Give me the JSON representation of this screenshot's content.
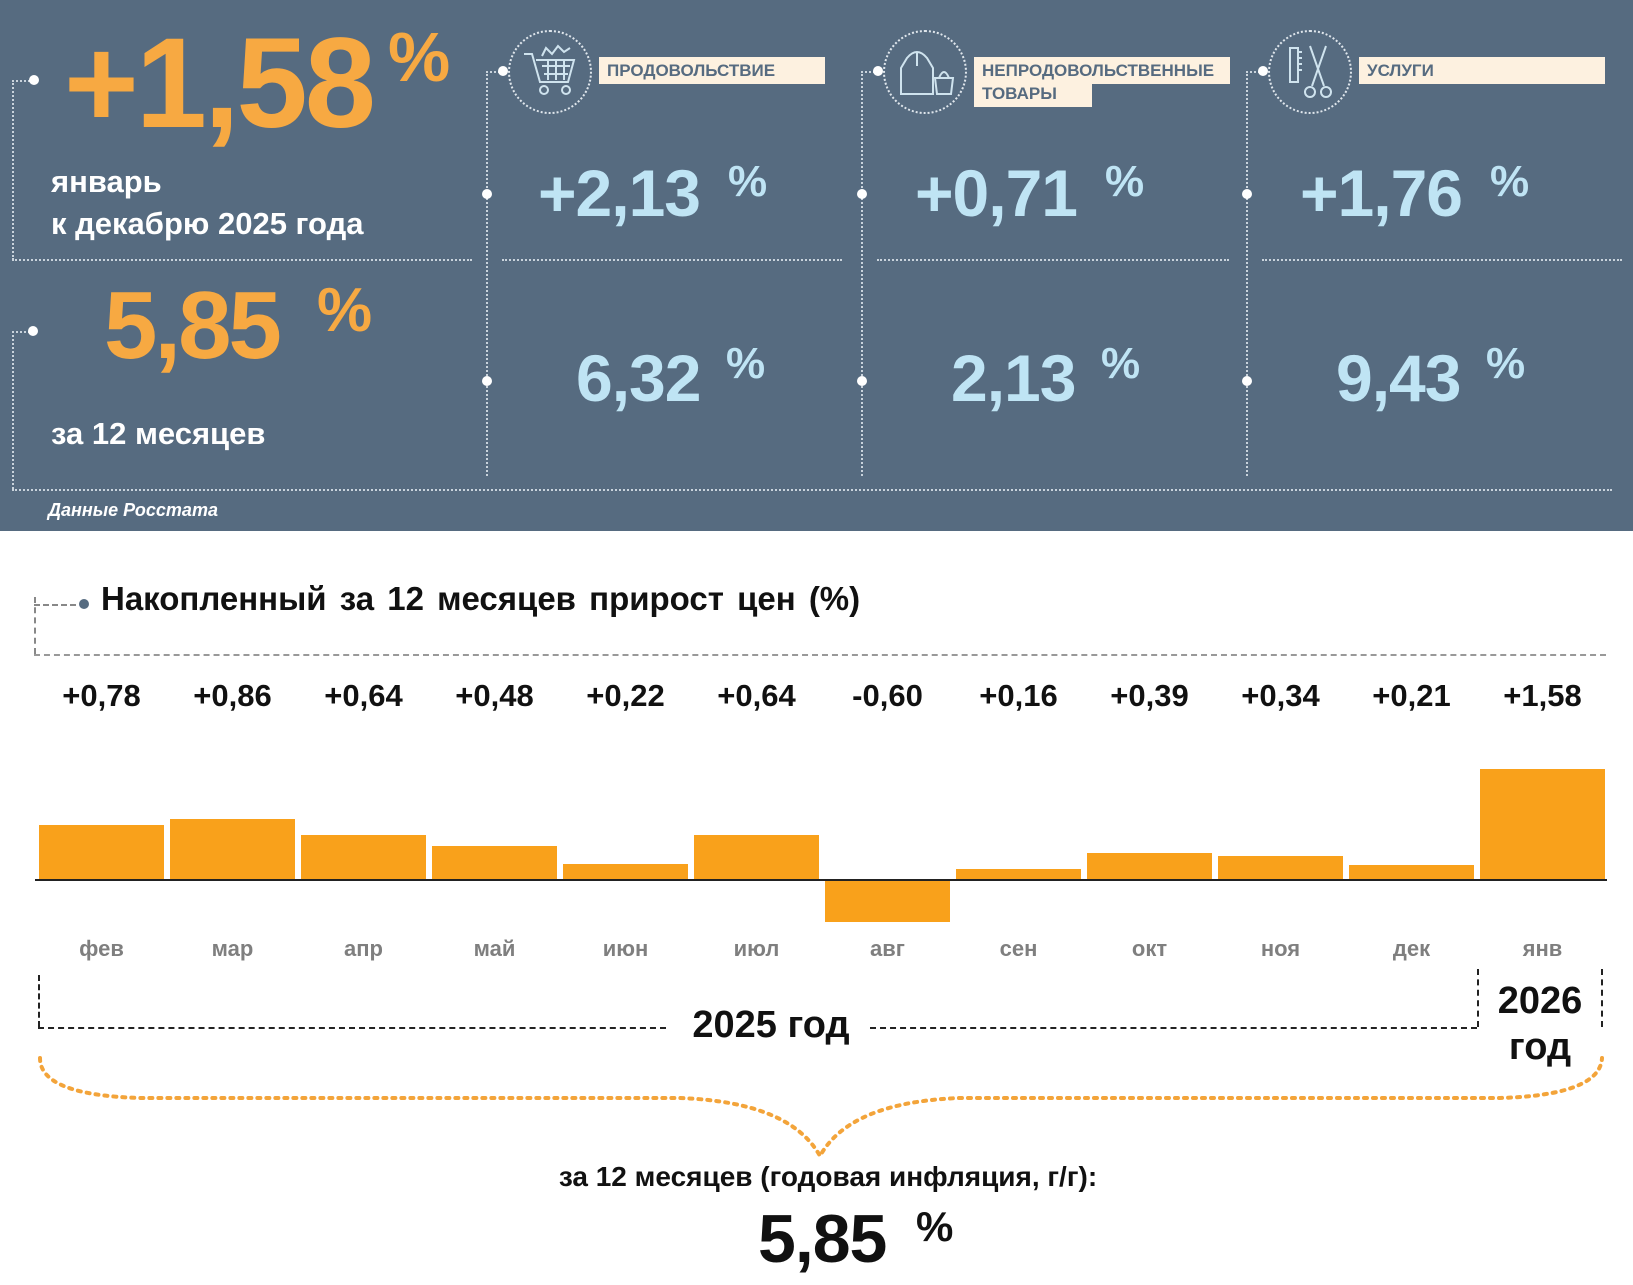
{
  "header": {
    "monthly": {
      "value": "+1,58",
      "unit": "%",
      "caption_line1": "январь",
      "caption_line2": "к декабрю 2025 года"
    },
    "annual": {
      "value": "5,85",
      "unit": "%",
      "caption": "за 12 месяцев"
    },
    "categories": [
      {
        "label": "ПРОДОВОЛЬСТВИЕ",
        "icon": "shopping-cart-icon",
        "monthly": "+2,13",
        "annual": "6,32",
        "unit": "%"
      },
      {
        "label_line1": "НЕПРОДОВОЛЬСТВЕННЫЕ",
        "label_line2": "ТОВАРЫ",
        "icon": "clothing-bag-icon",
        "monthly": "+0,71",
        "annual": "2,13",
        "unit": "%"
      },
      {
        "label": "УСЛУГИ",
        "icon": "comb-scissors-icon",
        "monthly": "+1,76",
        "annual": "9,43",
        "unit": "%"
      }
    ],
    "source": "Данные Росстата",
    "colors": {
      "panel": "#566b80",
      "accent": "#f7a942",
      "value": "#bfe4f4",
      "label_bg": "#fdf1e0"
    }
  },
  "chart_data": {
    "type": "bar",
    "title": "Накопленный за 12 месяцев прирост цен (%)",
    "categories": [
      "фев",
      "мар",
      "апр",
      "май",
      "июн",
      "июл",
      "авг",
      "сен",
      "окт",
      "ноя",
      "дек",
      "янв"
    ],
    "values": [
      0.78,
      0.86,
      0.64,
      0.48,
      0.22,
      0.64,
      -0.6,
      0.16,
      0.39,
      0.34,
      0.21,
      1.58
    ],
    "data_labels": [
      "+0,78",
      "+0,86",
      "+0,64",
      "+0,48",
      "+0,22",
      "+0,64",
      "-0,60",
      "+0,16",
      "+0,39",
      "+0,34",
      "+0,21",
      "+1,58"
    ],
    "bar_color": "#f9a11b",
    "year_2025": "2025 год",
    "year_2026_line1": "2026",
    "year_2026_line2": "год",
    "summary_caption": "за 12 месяцев (годовая инфляция, г/г):",
    "summary_value": "5,85",
    "summary_unit": "%"
  }
}
